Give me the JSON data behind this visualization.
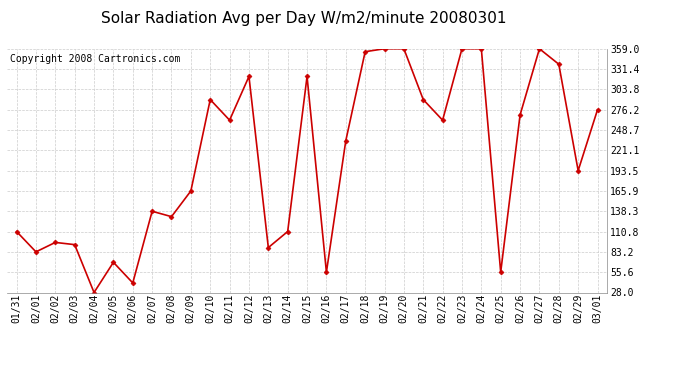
{
  "title": "Solar Radiation Avg per Day W/m2/minute 20080301",
  "copyright": "Copyright 2008 Cartronics.com",
  "dates": [
    "01/31",
    "02/01",
    "02/02",
    "02/03",
    "02/04",
    "02/05",
    "02/06",
    "02/07",
    "02/08",
    "02/09",
    "02/10",
    "02/11",
    "02/12",
    "02/13",
    "02/14",
    "02/15",
    "02/16",
    "02/17",
    "02/18",
    "02/19",
    "02/20",
    "02/21",
    "02/22",
    "02/23",
    "02/24",
    "02/25",
    "02/26",
    "02/27",
    "02/28",
    "02/29",
    "03/01"
  ],
  "values": [
    110.8,
    83.2,
    96.0,
    93.0,
    28.0,
    69.0,
    41.0,
    138.3,
    131.0,
    165.9,
    290.0,
    262.0,
    321.4,
    89.0,
    110.8,
    321.4,
    55.6,
    234.0,
    355.0,
    359.0,
    359.0,
    290.0,
    262.0,
    359.0,
    359.0,
    55.6,
    269.0,
    359.0,
    338.0,
    193.5,
    276.2
  ],
  "ylim_min": 28.0,
  "ylim_max": 359.0,
  "ytick_labels": [
    "359.0",
    "331.4",
    "303.8",
    "276.2",
    "248.7",
    "221.1",
    "193.5",
    "165.9",
    "138.3",
    "110.8",
    "83.2",
    "55.6",
    "28.0"
  ],
  "ytick_values": [
    359.0,
    331.4,
    303.8,
    276.2,
    248.7,
    221.1,
    193.5,
    165.9,
    138.3,
    110.8,
    83.2,
    55.6,
    28.0
  ],
  "line_color": "#cc0000",
  "marker": "D",
  "marker_size": 2.5,
  "background_color": "#ffffff",
  "grid_color": "#cccccc",
  "title_fontsize": 11,
  "tick_fontsize": 7,
  "copyright_fontsize": 7
}
